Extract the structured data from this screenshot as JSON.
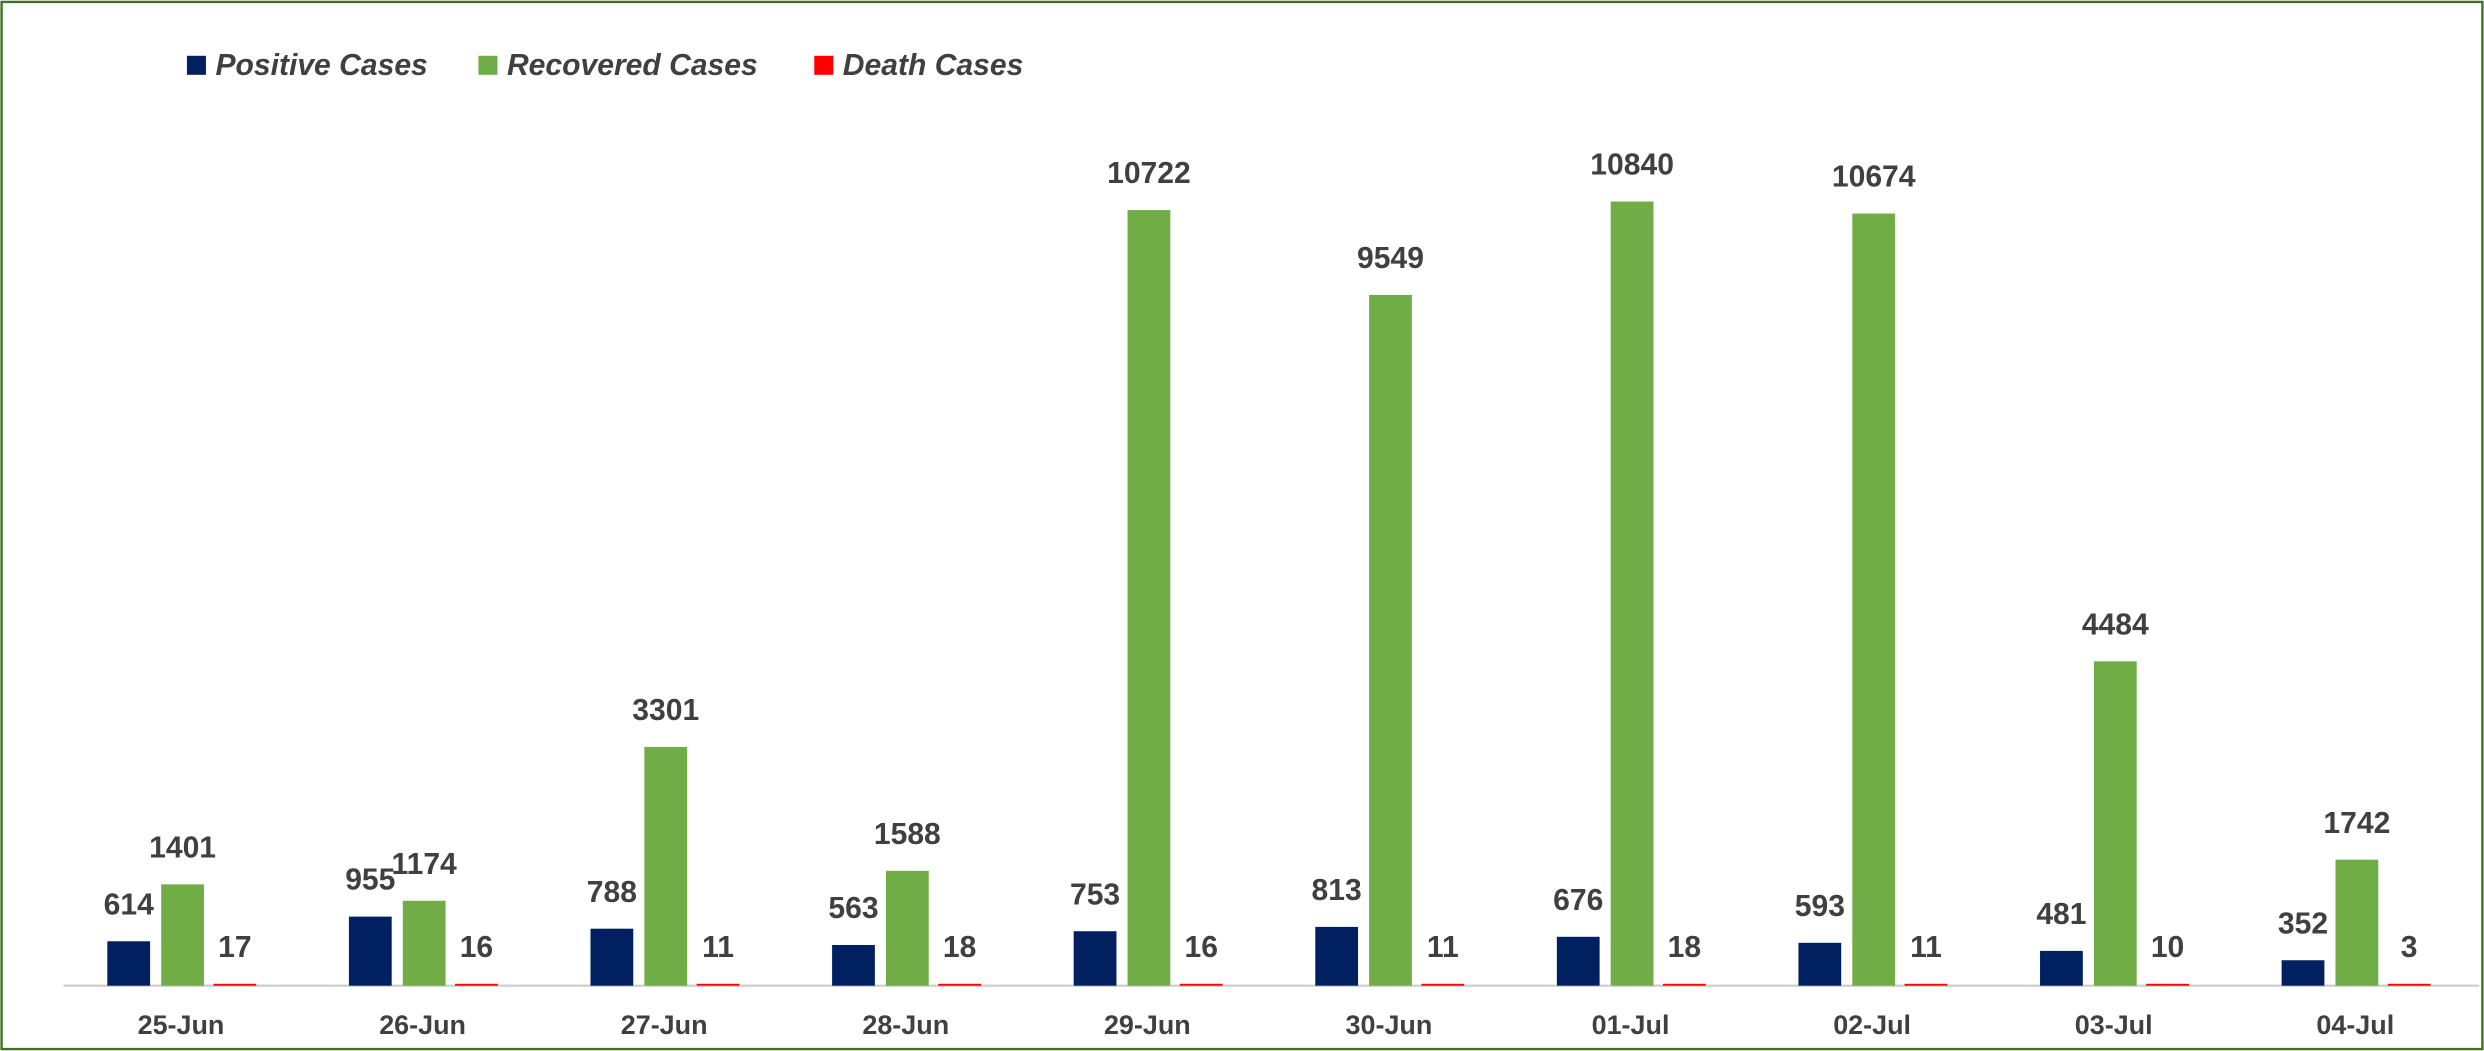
{
  "chart_data": {
    "type": "bar",
    "categories": [
      "25-Jun",
      "26-Jun",
      "27-Jun",
      "28-Jun",
      "29-Jun",
      "30-Jun",
      "01-Jul",
      "02-Jul",
      "03-Jul",
      "04-Jul"
    ],
    "series": [
      {
        "name": "Positive Cases",
        "color": "#002060",
        "values": [
          614,
          955,
          788,
          563,
          753,
          813,
          676,
          593,
          481,
          352
        ]
      },
      {
        "name": "Recovered Cases",
        "color": "#70ad47",
        "values": [
          1401,
          1174,
          3301,
          1588,
          10722,
          9549,
          10840,
          10674,
          4484,
          1742
        ]
      },
      {
        "name": "Death Cases",
        "color": "#ff0000",
        "values": [
          17,
          16,
          11,
          18,
          16,
          11,
          18,
          11,
          10,
          3
        ]
      }
    ],
    "legend": "top-left"
  }
}
